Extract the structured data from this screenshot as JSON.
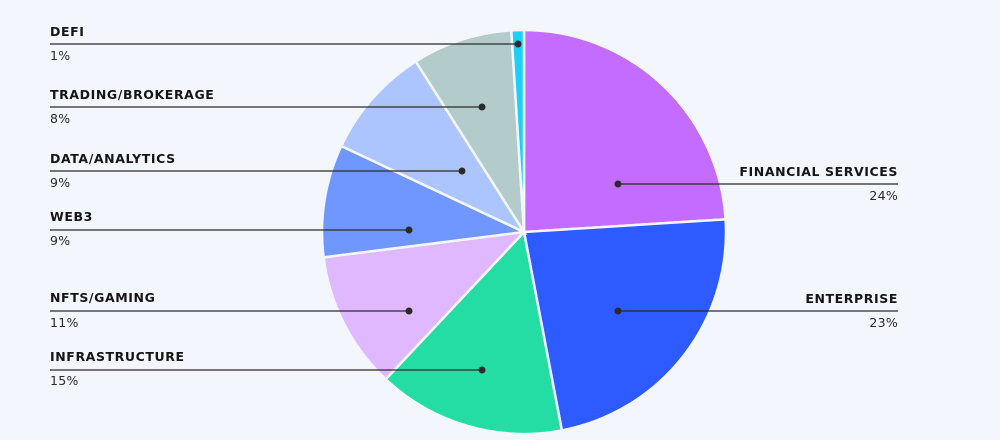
{
  "chart_data": {
    "type": "pie",
    "slices": [
      {
        "label": "FINANCIAL SERVICES",
        "percent_label": "24%",
        "value": 24,
        "color": "#c36cff",
        "side": "right"
      },
      {
        "label": "ENTERPRISE",
        "percent_label": "23%",
        "value": 23,
        "color": "#2d5bff",
        "side": "right"
      },
      {
        "label": "INFRASTRUCTURE",
        "percent_label": "15%",
        "value": 15,
        "color": "#24dda5",
        "side": "left"
      },
      {
        "label": "NFTS/GAMING",
        "percent_label": "11%",
        "value": 11,
        "color": "#e0b8ff",
        "side": "left"
      },
      {
        "label": "WEB3",
        "percent_label": "9%",
        "value": 9,
        "color": "#6f97ff",
        "side": "left"
      },
      {
        "label": "DATA/ANALYTICS",
        "percent_label": "9%",
        "value": 9,
        "color": "#acc5ff",
        "side": "left"
      },
      {
        "label": "TRADING/BROKERAGE",
        "percent_label": "8%",
        "value": 8,
        "color": "#b4cbcb",
        "side": "left"
      },
      {
        "label": "DEFI",
        "percent_label": "1%",
        "value": 1,
        "color": "#1ad0f5",
        "side": "left"
      }
    ],
    "legend": "leader-line labels",
    "colors": {
      "background": "#f3f6fd",
      "text": "#151515"
    }
  }
}
